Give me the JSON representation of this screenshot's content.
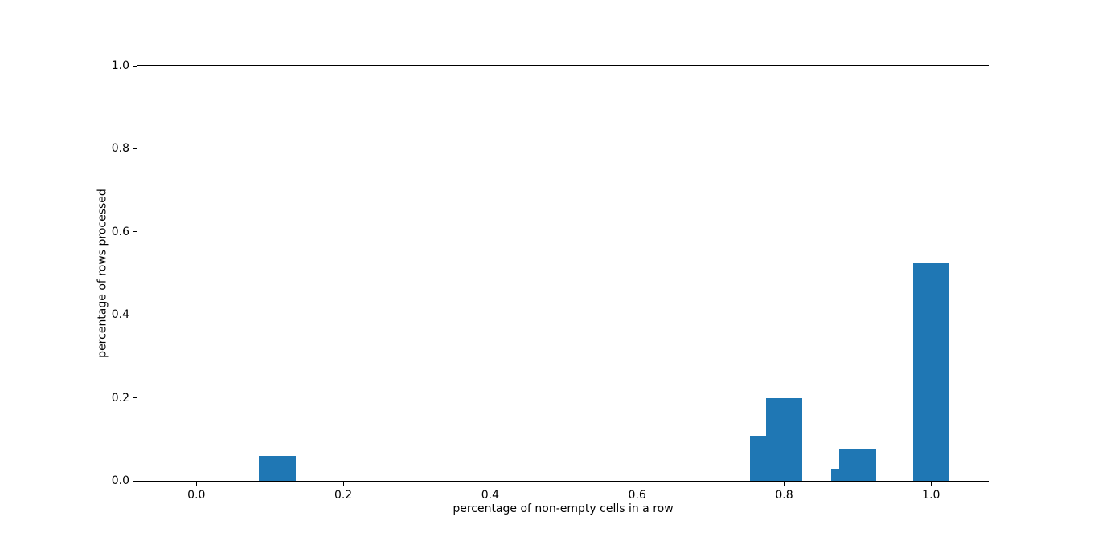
{
  "figure": {
    "background_color": "#ffffff",
    "spine_color": "#000000",
    "text_color": "#000000"
  },
  "chart_data": {
    "type": "bar",
    "title": "",
    "xlabel": "percentage of non-empty cells in a row",
    "ylabel": "percentage of rows processed",
    "xlim": [
      -0.0802,
      1.0784
    ],
    "ylim": [
      0,
      1
    ],
    "grid": false,
    "legend": false,
    "bar_color": "#1f77b4",
    "bar_width": 0.05,
    "bars": [
      {
        "x": 0.11,
        "height": 0.061
      },
      {
        "x": 0.778,
        "height": 0.108
      },
      {
        "x": 0.8,
        "height": 0.2
      },
      {
        "x": 0.889,
        "height": 0.03
      },
      {
        "x": 0.9,
        "height": 0.076
      },
      {
        "x": 1.0,
        "height": 0.525
      }
    ],
    "x_ticks": [
      {
        "value": 0.0,
        "label": "0.0"
      },
      {
        "value": 0.2,
        "label": "0.2"
      },
      {
        "value": 0.4,
        "label": "0.4"
      },
      {
        "value": 0.6,
        "label": "0.6"
      },
      {
        "value": 0.8,
        "label": "0.8"
      },
      {
        "value": 1.0,
        "label": "1.0"
      }
    ],
    "y_ticks": [
      {
        "value": 0.0,
        "label": "0.0"
      },
      {
        "value": 0.2,
        "label": "0.2"
      },
      {
        "value": 0.4,
        "label": "0.4"
      },
      {
        "value": 0.6,
        "label": "0.6"
      },
      {
        "value": 0.8,
        "label": "0.8"
      },
      {
        "value": 1.0,
        "label": "1.0"
      }
    ]
  }
}
